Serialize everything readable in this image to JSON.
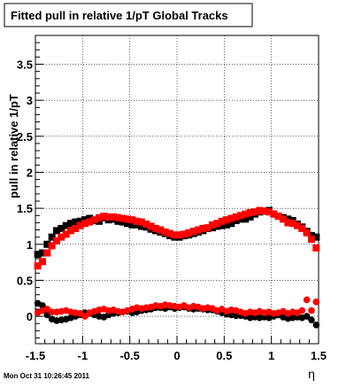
{
  "chart_data": {
    "type": "scatter",
    "title": "Fitted pull in relative 1/pT  Global Tracks",
    "xlabel": "η",
    "ylabel": "pull in relative 1/pT",
    "footer": "Mon Oct 31 10:26:45 2011",
    "xlim": [
      -1.5,
      1.5
    ],
    "ylim": [
      -0.38,
      3.9
    ],
    "grid": true,
    "legend": "none",
    "x_ticks": [
      -1.5,
      -1,
      -0.5,
      0,
      0.5,
      1,
      1.5
    ],
    "x_tick_labels": [
      "-1.5",
      "-1",
      "-0.5",
      "0",
      "0.5",
      "1",
      "1.5"
    ],
    "y_ticks": [
      0,
      0.5,
      1,
      1.5,
      2,
      2.5,
      3,
      3.5
    ],
    "y_tick_labels": [
      "0",
      "0.5",
      "1",
      "1.5",
      "2",
      "2.5",
      "3",
      "3.5"
    ],
    "series": [
      {
        "color": "#000000",
        "marker": "square",
        "x": [
          -1.475,
          -1.425,
          -1.375,
          -1.325,
          -1.275,
          -1.225,
          -1.175,
          -1.125,
          -1.075,
          -1.025,
          -0.975,
          -0.925,
          -0.875,
          -0.825,
          -0.775,
          -0.725,
          -0.675,
          -0.625,
          -0.575,
          -0.525,
          -0.475,
          -0.425,
          -0.375,
          -0.325,
          -0.275,
          -0.225,
          -0.175,
          -0.125,
          -0.075,
          -0.025,
          0.025,
          0.075,
          0.125,
          0.175,
          0.225,
          0.275,
          0.325,
          0.375,
          0.425,
          0.475,
          0.525,
          0.575,
          0.625,
          0.675,
          0.725,
          0.775,
          0.825,
          0.875,
          0.925,
          0.975,
          1.025,
          1.075,
          1.125,
          1.175,
          1.225,
          1.275,
          1.325,
          1.375,
          1.425,
          1.475
        ],
        "y": [
          0.86,
          0.88,
          1.0,
          1.1,
          1.19,
          1.22,
          1.26,
          1.29,
          1.31,
          1.32,
          1.34,
          1.36,
          1.33,
          1.32,
          1.37,
          1.34,
          1.35,
          1.32,
          1.31,
          1.29,
          1.27,
          1.27,
          1.25,
          1.24,
          1.21,
          1.19,
          1.17,
          1.15,
          1.12,
          1.1,
          1.1,
          1.12,
          1.13,
          1.15,
          1.17,
          1.19,
          1.22,
          1.23,
          1.25,
          1.26,
          1.27,
          1.29,
          1.33,
          1.35,
          1.35,
          1.38,
          1.42,
          1.45,
          1.46,
          1.47,
          1.42,
          1.39,
          1.37,
          1.35,
          1.33,
          1.28,
          1.24,
          1.18,
          1.12,
          1.1
        ]
      },
      {
        "color": "#ff0000",
        "marker": "square",
        "x": [
          -1.475,
          -1.425,
          -1.375,
          -1.325,
          -1.275,
          -1.225,
          -1.175,
          -1.125,
          -1.075,
          -1.025,
          -0.975,
          -0.925,
          -0.875,
          -0.825,
          -0.775,
          -0.725,
          -0.675,
          -0.625,
          -0.575,
          -0.525,
          -0.475,
          -0.425,
          -0.375,
          -0.325,
          -0.275,
          -0.225,
          -0.175,
          -0.125,
          -0.075,
          -0.025,
          0.025,
          0.075,
          0.125,
          0.175,
          0.225,
          0.275,
          0.325,
          0.375,
          0.425,
          0.475,
          0.525,
          0.575,
          0.625,
          0.675,
          0.725,
          0.775,
          0.825,
          0.875,
          0.925,
          0.975,
          1.025,
          1.075,
          1.125,
          1.175,
          1.225,
          1.275,
          1.325,
          1.375,
          1.425,
          1.475
        ],
        "y": [
          0.7,
          0.76,
          0.88,
          0.98,
          1.05,
          1.1,
          1.14,
          1.19,
          1.22,
          1.26,
          1.29,
          1.31,
          1.34,
          1.37,
          1.39,
          1.38,
          1.38,
          1.37,
          1.36,
          1.35,
          1.34,
          1.32,
          1.31,
          1.28,
          1.25,
          1.22,
          1.2,
          1.17,
          1.15,
          1.13,
          1.13,
          1.14,
          1.16,
          1.18,
          1.2,
          1.22,
          1.23,
          1.27,
          1.29,
          1.32,
          1.34,
          1.36,
          1.38,
          1.4,
          1.42,
          1.44,
          1.45,
          1.47,
          1.46,
          1.45,
          1.42,
          1.39,
          1.35,
          1.3,
          1.29,
          1.26,
          1.22,
          1.16,
          1.07,
          0.95
        ]
      },
      {
        "color": "#000000",
        "marker": "circle",
        "x": [
          -1.475,
          -1.425,
          -1.375,
          -1.325,
          -1.275,
          -1.225,
          -1.175,
          -1.125,
          -1.075,
          -1.025,
          -0.975,
          -0.925,
          -0.875,
          -0.825,
          -0.775,
          -0.725,
          -0.675,
          -0.625,
          -0.575,
          -0.525,
          -0.475,
          -0.425,
          -0.375,
          -0.325,
          -0.275,
          -0.225,
          -0.175,
          -0.125,
          -0.075,
          -0.025,
          0.025,
          0.075,
          0.125,
          0.175,
          0.225,
          0.275,
          0.325,
          0.375,
          0.425,
          0.475,
          0.525,
          0.575,
          0.625,
          0.675,
          0.725,
          0.775,
          0.825,
          0.875,
          0.925,
          0.975,
          1.025,
          1.075,
          1.125,
          1.175,
          1.225,
          1.275,
          1.325,
          1.375,
          1.425,
          1.475
        ],
        "y": [
          0.18,
          0.15,
          0.02,
          -0.04,
          -0.06,
          -0.05,
          -0.04,
          -0.02,
          0.0,
          0.02,
          0.05,
          0.04,
          0.02,
          0.0,
          -0.01,
          0.02,
          0.04,
          0.05,
          0.06,
          0.07,
          0.05,
          0.06,
          0.08,
          0.09,
          0.1,
          0.12,
          0.12,
          0.11,
          0.13,
          0.11,
          0.12,
          0.13,
          0.11,
          0.1,
          0.11,
          0.1,
          0.09,
          0.09,
          0.07,
          0.05,
          0.03,
          0.02,
          0.01,
          0.01,
          0.0,
          -0.02,
          -0.01,
          -0.02,
          -0.01,
          -0.02,
          0.0,
          0.02,
          -0.01,
          -0.03,
          -0.02,
          -0.01,
          -0.02,
          0.0,
          -0.05,
          -0.12
        ]
      },
      {
        "color": "#ff0000",
        "marker": "circle",
        "x": [
          -1.475,
          -1.425,
          -1.375,
          -1.325,
          -1.275,
          -1.225,
          -1.175,
          -1.125,
          -1.075,
          -1.025,
          -0.975,
          -0.925,
          -0.875,
          -0.825,
          -0.775,
          -0.725,
          -0.675,
          -0.625,
          -0.575,
          -0.525,
          -0.475,
          -0.425,
          -0.375,
          -0.325,
          -0.275,
          -0.225,
          -0.175,
          -0.125,
          -0.075,
          -0.025,
          0.025,
          0.075,
          0.125,
          0.175,
          0.225,
          0.275,
          0.325,
          0.375,
          0.425,
          0.475,
          0.525,
          0.575,
          0.625,
          0.675,
          0.725,
          0.775,
          0.825,
          0.875,
          0.925,
          0.975,
          1.025,
          1.075,
          1.125,
          1.175,
          1.225,
          1.275,
          1.325,
          1.375,
          1.425,
          1.475
        ],
        "y": [
          0.05,
          0.08,
          0.1,
          0.06,
          0.06,
          0.07,
          0.08,
          0.06,
          0.05,
          0.04,
          0.0,
          0.05,
          0.07,
          0.09,
          0.1,
          0.08,
          0.09,
          0.07,
          0.06,
          0.08,
          0.1,
          0.12,
          0.11,
          0.12,
          0.13,
          0.15,
          0.14,
          0.16,
          0.15,
          0.14,
          0.13,
          0.15,
          0.12,
          0.14,
          0.13,
          0.11,
          0.12,
          0.11,
          0.08,
          0.1,
          0.07,
          0.09,
          0.08,
          0.06,
          0.04,
          0.06,
          0.05,
          0.07,
          0.05,
          0.06,
          0.04,
          0.05,
          0.07,
          0.04,
          0.06,
          0.05,
          0.08,
          0.23,
          0.08,
          0.2
        ]
      }
    ]
  }
}
